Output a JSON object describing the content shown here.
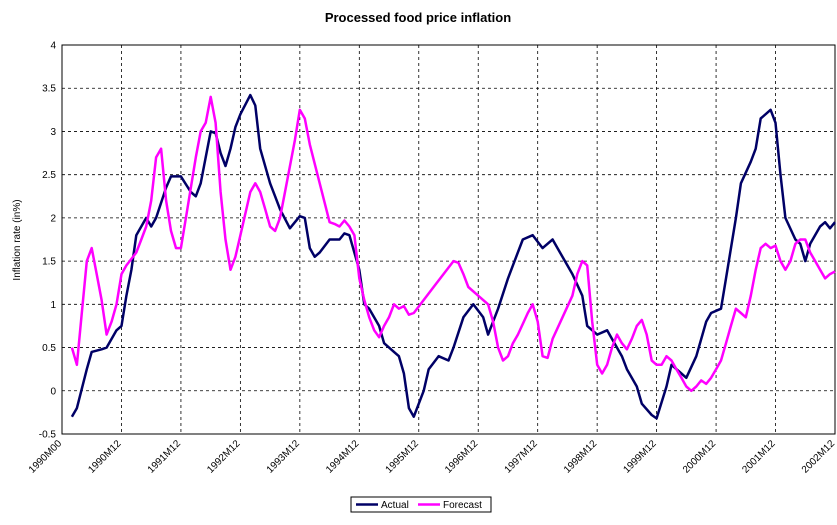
{
  "chart_data": {
    "type": "line",
    "title": "Processed food price inflation",
    "y_label": "Inflation rate (in%)",
    "xlim": [
      0,
      156
    ],
    "ylim": [
      -0.5,
      4
    ],
    "xticks": [
      {
        "value": 0,
        "label": "1990M00"
      },
      {
        "value": 12,
        "label": "1990M12"
      },
      {
        "value": 24,
        "label": "1991M12"
      },
      {
        "value": 36,
        "label": "1992M12"
      },
      {
        "value": 48,
        "label": "1993M12"
      },
      {
        "value": 60,
        "label": "1994M12"
      },
      {
        "value": 72,
        "label": "1995M12"
      },
      {
        "value": 84,
        "label": "1996M12"
      },
      {
        "value": 96,
        "label": "1997M12"
      },
      {
        "value": 108,
        "label": "1998M12"
      },
      {
        "value": 120,
        "label": "1999M12"
      },
      {
        "value": 132,
        "label": "2000M12"
      },
      {
        "value": 144,
        "label": "2001M12"
      },
      {
        "value": 156,
        "label": "2002M12"
      }
    ],
    "yticks": [
      -0.5,
      0,
      0.5,
      1,
      1.5,
      2,
      2.5,
      3,
      3.5,
      4
    ],
    "grid": true,
    "legend": "bottom",
    "series": [
      {
        "name": "Actual",
        "color": "#000066",
        "x": [
          2,
          3,
          5,
          6,
          8,
          9,
          11,
          12,
          13,
          14,
          15,
          17,
          18,
          19,
          21,
          22,
          24,
          26,
          27,
          28,
          30,
          31,
          32,
          33,
          34,
          35,
          36,
          38,
          39,
          40,
          42,
          43,
          44,
          46,
          48,
          49,
          50,
          51,
          52,
          54,
          56,
          57,
          58,
          60,
          61,
          62,
          64,
          65,
          67,
          68,
          69,
          70,
          71,
          73,
          74,
          76,
          78,
          79,
          81,
          83,
          85,
          86,
          88,
          90,
          91,
          93,
          95,
          97,
          99,
          100,
          102,
          103,
          105,
          106,
          108,
          110,
          111,
          113,
          114,
          116,
          117,
          119,
          120,
          122,
          123,
          125,
          126,
          128,
          130,
          131,
          133,
          134,
          136,
          137,
          139,
          140,
          141,
          143,
          144,
          145,
          146,
          148,
          149,
          150,
          151,
          153,
          154,
          155,
          156
        ],
        "values": [
          -0.3,
          -0.2,
          0.25,
          0.45,
          0.48,
          0.5,
          0.7,
          0.75,
          1.1,
          1.4,
          1.8,
          2.0,
          1.9,
          2.0,
          2.35,
          2.48,
          2.48,
          2.3,
          2.25,
          2.4,
          3.0,
          2.98,
          2.75,
          2.6,
          2.8,
          3.05,
          3.2,
          3.42,
          3.3,
          2.8,
          2.4,
          2.25,
          2.1,
          1.88,
          2.02,
          2.0,
          1.65,
          1.55,
          1.6,
          1.75,
          1.75,
          1.82,
          1.8,
          1.4,
          1.0,
          0.95,
          0.75,
          0.55,
          0.45,
          0.4,
          0.2,
          -0.2,
          -0.3,
          0.0,
          0.25,
          0.4,
          0.35,
          0.5,
          0.85,
          1.0,
          0.85,
          0.65,
          0.95,
          1.3,
          1.45,
          1.75,
          1.8,
          1.65,
          1.75,
          1.65,
          1.45,
          1.35,
          1.1,
          0.75,
          0.65,
          0.7,
          0.6,
          0.4,
          0.25,
          0.05,
          -0.15,
          -0.28,
          -0.32,
          0.05,
          0.3,
          0.2,
          0.15,
          0.4,
          0.8,
          0.9,
          0.95,
          1.3,
          2.0,
          2.4,
          2.65,
          2.8,
          3.15,
          3.25,
          3.1,
          2.5,
          2.0,
          1.75,
          1.7,
          1.5,
          1.7,
          1.9,
          1.95,
          1.88,
          1.95
        ]
      },
      {
        "name": "Forecast",
        "color": "#ff00ff",
        "x": [
          2,
          3,
          4,
          5,
          6,
          7,
          8,
          9,
          10,
          11,
          12,
          13,
          15,
          16,
          17,
          18,
          19,
          20,
          21,
          22,
          23,
          24,
          25,
          27,
          28,
          29,
          30,
          31,
          32,
          33,
          34,
          35,
          36,
          38,
          39,
          40,
          41,
          42,
          43,
          44,
          45,
          47,
          48,
          49,
          50,
          52,
          54,
          55,
          56,
          57,
          58,
          59,
          60,
          61,
          62,
          63,
          64,
          65,
          66,
          67,
          68,
          69,
          70,
          71,
          73,
          75,
          77,
          79,
          80,
          81,
          82,
          84,
          86,
          87,
          88,
          89,
          90,
          91,
          92,
          94,
          95,
          96,
          97,
          98,
          99,
          101,
          103,
          104,
          105,
          106,
          107,
          108,
          109,
          110,
          111,
          112,
          113,
          114,
          115,
          116,
          117,
          118,
          119,
          120,
          121,
          122,
          123,
          124,
          125,
          126,
          127,
          128,
          129,
          130,
          131,
          132,
          133,
          134,
          135,
          136,
          137,
          138,
          139,
          140,
          141,
          142,
          143,
          144,
          145,
          146,
          147,
          148,
          149,
          150,
          151,
          152,
          153,
          154,
          155,
          156
        ],
        "values": [
          0.5,
          0.3,
          0.9,
          1.5,
          1.65,
          1.35,
          1.05,
          0.65,
          0.8,
          1.0,
          1.35,
          1.45,
          1.6,
          1.75,
          1.9,
          2.2,
          2.7,
          2.8,
          2.2,
          1.85,
          1.65,
          1.65,
          2.0,
          2.7,
          3.0,
          3.1,
          3.4,
          3.1,
          2.3,
          1.75,
          1.4,
          1.55,
          1.8,
          2.3,
          2.4,
          2.3,
          2.1,
          1.9,
          1.85,
          2.0,
          2.3,
          2.9,
          3.25,
          3.15,
          2.85,
          2.4,
          1.95,
          1.93,
          1.9,
          1.97,
          1.9,
          1.8,
          1.3,
          1.05,
          0.85,
          0.7,
          0.62,
          0.75,
          0.85,
          1.0,
          0.95,
          0.98,
          0.88,
          0.9,
          1.05,
          1.2,
          1.35,
          1.5,
          1.48,
          1.35,
          1.2,
          1.1,
          1.0,
          0.8,
          0.5,
          0.35,
          0.4,
          0.55,
          0.65,
          0.9,
          1.0,
          0.8,
          0.4,
          0.38,
          0.6,
          0.85,
          1.1,
          1.35,
          1.5,
          1.45,
          0.8,
          0.3,
          0.2,
          0.3,
          0.5,
          0.65,
          0.55,
          0.48,
          0.6,
          0.75,
          0.82,
          0.65,
          0.35,
          0.3,
          0.3,
          0.4,
          0.35,
          0.25,
          0.15,
          0.05,
          0.0,
          0.05,
          0.12,
          0.08,
          0.15,
          0.25,
          0.35,
          0.55,
          0.75,
          0.95,
          0.9,
          0.85,
          1.1,
          1.4,
          1.65,
          1.7,
          1.65,
          1.68,
          1.5,
          1.4,
          1.5,
          1.7,
          1.75,
          1.75,
          1.6,
          1.5,
          1.4,
          1.3,
          1.35,
          1.38
        ]
      }
    ]
  }
}
